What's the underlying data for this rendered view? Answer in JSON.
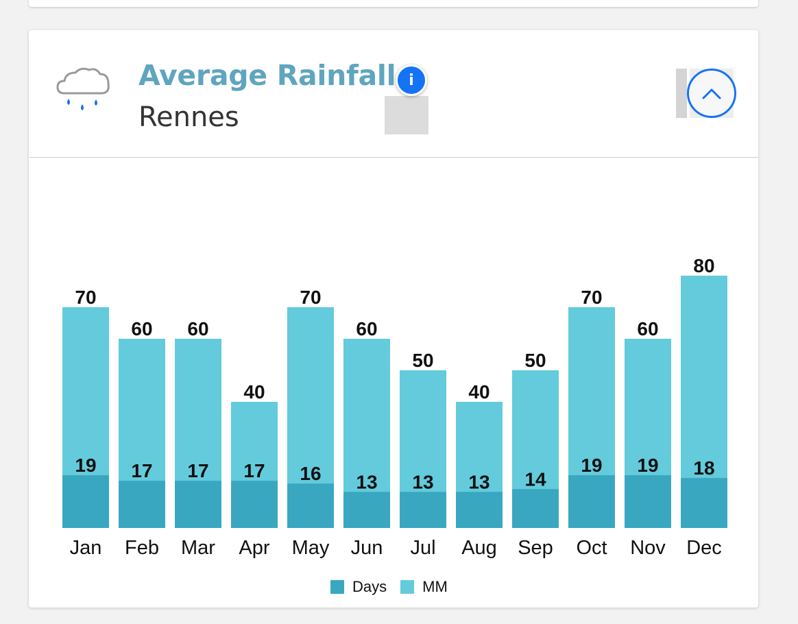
{
  "card": {
    "title": "Average Rainfall",
    "subtitle": "Rennes",
    "info_glyph": "i",
    "weather_icon": "rain-cloud-icon",
    "info_icon": "info-icon",
    "collapse_icon": "chevron-up-icon"
  },
  "colors": {
    "title": "#5fa5bf",
    "days": "#3aa7c1",
    "mm": "#63cbdc",
    "accent": "#1573f6"
  },
  "chart_data": {
    "type": "bar",
    "stacked": "overlapping",
    "categories": [
      "Jan",
      "Feb",
      "Mar",
      "Apr",
      "May",
      "Jun",
      "Jul",
      "Aug",
      "Sep",
      "Oct",
      "Nov",
      "Dec"
    ],
    "series": [
      {
        "name": "Days",
        "values": [
          19,
          17,
          17,
          17,
          16,
          13,
          13,
          13,
          14,
          19,
          19,
          18
        ]
      },
      {
        "name": "MM",
        "values": [
          70,
          60,
          60,
          40,
          70,
          60,
          50,
          40,
          50,
          70,
          60,
          80
        ]
      }
    ],
    "title": "",
    "xlabel": "",
    "ylabel": "",
    "grid": false,
    "legend": "bottom-center"
  }
}
